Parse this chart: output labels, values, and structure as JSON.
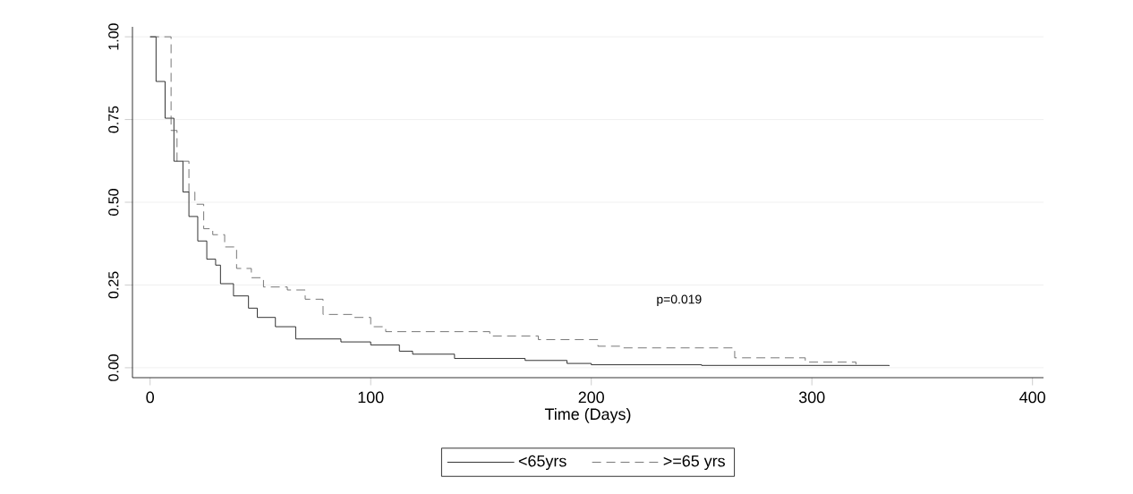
{
  "chart_data": {
    "type": "step",
    "xlabel": "Time (Days)",
    "xlim": [
      -8,
      405
    ],
    "ylim": [
      -0.03,
      1.03
    ],
    "xticks": [
      0,
      100,
      200,
      300,
      400
    ],
    "yticks": [
      {
        "value": 0,
        "label": "0.00"
      },
      {
        "value": 0.25,
        "label": "0.25"
      },
      {
        "value": 0.5,
        "label": "0.50"
      },
      {
        "value": 0.75,
        "label": "0.75"
      },
      {
        "value": 1,
        "label": "1.00"
      }
    ],
    "grid": "y",
    "legend": "bottom",
    "annotations": [
      "p=0.019"
    ],
    "series": [
      {
        "name": "<65yrs",
        "color": "#000000",
        "line_style": "solid",
        "x": [
          0,
          2.7,
          6.8,
          10.8,
          14.9,
          17.6,
          21.6,
          25.7,
          29.7,
          31.9,
          37.8,
          44.6,
          48.6,
          56.8,
          66,
          86.5,
          100,
          113,
          119,
          138,
          170,
          189,
          200,
          250,
          335
        ],
        "values": [
          1,
          0.865,
          0.754,
          0.624,
          0.531,
          0.457,
          0.383,
          0.328,
          0.31,
          0.254,
          0.217,
          0.18,
          0.152,
          0.124,
          0.087,
          0.078,
          0.069,
          0.05,
          0.041,
          0.028,
          0.022,
          0.013,
          0.009,
          0.007,
          0.005
        ]
      },
      {
        "name": ">=65 yrs",
        "color": "#555555",
        "line_style": "dashed",
        "x": [
          0,
          9.5,
          12.2,
          17.6,
          20.3,
          24.3,
          28.4,
          33.8,
          39.2,
          45.9,
          51.4,
          62.2,
          70.3,
          78.4,
          91.9,
          100,
          106.8,
          127,
          154,
          176,
          203,
          213.5,
          265,
          297,
          320
        ],
        "values": [
          1,
          0.717,
          0.624,
          0.531,
          0.494,
          0.42,
          0.402,
          0.365,
          0.3,
          0.272,
          0.244,
          0.235,
          0.207,
          0.161,
          0.152,
          0.124,
          0.109,
          0.109,
          0.096,
          0.085,
          0.065,
          0.06,
          0.03,
          0.017,
          0.01
        ]
      }
    ]
  }
}
